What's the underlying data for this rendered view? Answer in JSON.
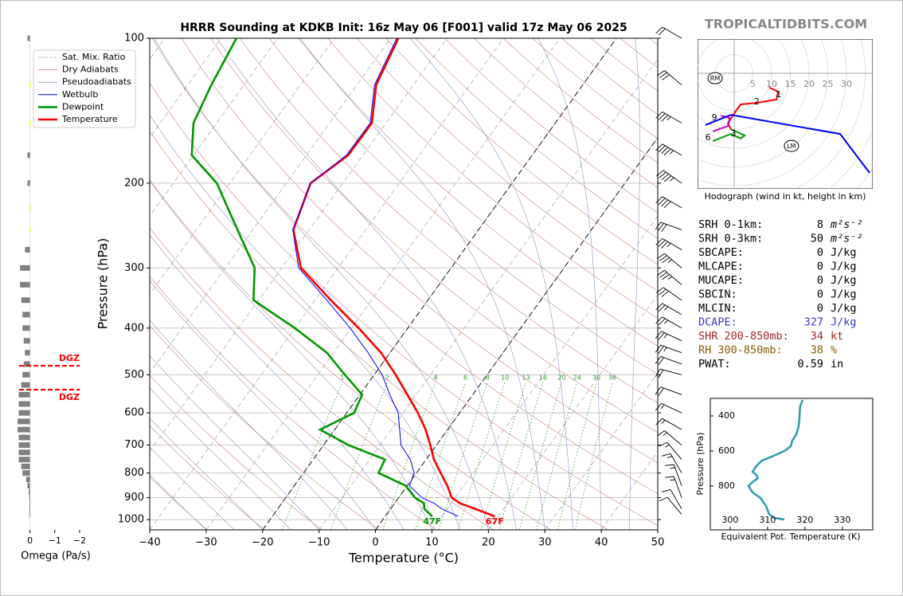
{
  "watermark": "TROPICALTIDBITS.COM",
  "chart_data": [
    {
      "type": "skewt",
      "title": "HRRR Sounding at KDKB Init: 16z May 06 [F001] valid 17z May 06 2025",
      "xlabel": "Temperature (°C)",
      "ylabel": "Pressure (hPa)",
      "xlim": [
        -40,
        50
      ],
      "xticks": [
        {
          "value": -40,
          "label": "−40"
        },
        {
          "value": -30,
          "label": "−30"
        },
        {
          "value": -20,
          "label": "−20"
        },
        {
          "value": -10,
          "label": "−10"
        },
        0,
        10,
        20,
        30,
        40,
        50
      ],
      "ylim": [
        1050,
        100
      ],
      "yscale": "log",
      "yticks": [
        100,
        200,
        300,
        400,
        500,
        600,
        700,
        800,
        900,
        1000
      ],
      "grid": true,
      "legend": "upper left",
      "pressure": [
        984,
        950,
        925,
        900,
        850,
        800,
        750,
        700,
        650,
        600,
        550,
        500,
        450,
        400,
        350,
        300,
        250,
        200,
        175,
        150,
        125,
        100
      ],
      "series": [
        {
          "name": "Temperature",
          "color": "#ff0000",
          "surface_label": "67F",
          "values": [
            19.4,
            15,
            11.6,
            9.4,
            7.1,
            4.3,
            1.4,
            -1.1,
            -3.9,
            -7.4,
            -11.6,
            -16.2,
            -21.6,
            -28.7,
            -37.2,
            -46.6,
            -52.8,
            -55.7,
            -52.6,
            -52.5,
            -56.6,
            -58.6
          ]
        },
        {
          "name": "Dewpoint",
          "color": "#009900",
          "surface_label": "47F",
          "values": [
            8.3,
            6.0,
            5.2,
            2.9,
            -0.3,
            -6.7,
            -7.3,
            -15.6,
            -22.6,
            -18.7,
            -19.6,
            -25.2,
            -31.2,
            -40,
            -50.9,
            -54.8,
            -62.7,
            -72.3,
            -80.3,
            -84.1,
            -85.8,
            -87.3
          ]
        },
        {
          "name": "Wetbulb",
          "color": "#0000ff",
          "values": [
            12.9,
            9.1,
            7.0,
            4.1,
            0.4,
            -0.4,
            -2.8,
            -6.3,
            -8.5,
            -10.9,
            -14.7,
            -18.6,
            -23.9,
            -30.2,
            -37.9,
            -47.0,
            -52.9,
            -55.7,
            -52.9,
            -52.8,
            -56.9,
            -58.9
          ]
        }
      ],
      "reference_lines": [
        {
          "name": "Sat. Mix. Ratio",
          "color": "#2e9a2e"
        },
        {
          "name": "Dry Adiabats",
          "color": "#d08080"
        },
        {
          "name": "Pseudoadiabats",
          "color": "#9090c8"
        }
      ],
      "highlight_isotherms": [
        -20,
        0
      ],
      "mixing_ratios": [
        1,
        2,
        4,
        6,
        8,
        10,
        13,
        16,
        20,
        24,
        30,
        36
      ],
      "winds": {
        "pressure": [
          100,
          125,
          150,
          175,
          200,
          225,
          250,
          275,
          300,
          325,
          350,
          375,
          400,
          425,
          450,
          475,
          500,
          550,
          600,
          650,
          700,
          750,
          800,
          850,
          900,
          950,
          975
        ],
        "speed": [
          20,
          30,
          35,
          45,
          45,
          40,
          30,
          35,
          35,
          35,
          30,
          25,
          25,
          25,
          25,
          20,
          20,
          20,
          15,
          15,
          15,
          15,
          15,
          15,
          15,
          10,
          10
        ],
        "direction": [
          300,
          310,
          300,
          300,
          305,
          300,
          290,
          300,
          310,
          310,
          305,
          300,
          300,
          295,
          290,
          290,
          285,
          290,
          295,
          300,
          310,
          320,
          330,
          340,
          340,
          330,
          320
        ]
      }
    },
    {
      "type": "omega",
      "xlabel": "Omega (Pa/s)",
      "xlim": [
        0.5,
        -2
      ],
      "xticks": [
        0,
        {
          "value": -1,
          "label": "−1"
        },
        {
          "value": -2,
          "label": "−2"
        }
      ],
      "ylim": [
        1050,
        100
      ],
      "pressure": [
        100,
        125,
        150,
        175,
        200,
        225,
        250,
        275,
        300,
        325,
        350,
        375,
        400,
        425,
        450,
        475,
        500,
        525,
        550,
        575,
        600,
        625,
        650,
        675,
        700,
        725,
        750,
        775,
        800,
        825,
        850,
        875,
        900,
        925,
        950,
        975
      ],
      "values": [
        0.1,
        -0.03,
        -0.03,
        0.1,
        0.1,
        -0.03,
        -0.03,
        0.2,
        0.4,
        0.4,
        0.35,
        0.3,
        0.3,
        0.25,
        0.2,
        0.25,
        0.3,
        0.35,
        0.45,
        0.45,
        0.45,
        0.5,
        0.5,
        0.45,
        0.45,
        0.45,
        0.45,
        0.35,
        0.3,
        0.15,
        0.1,
        0.05,
        0.03,
        0.02,
        0.02,
        0.02
      ],
      "positive_color": "#808080",
      "negative_color": "#f0f000",
      "dgz": [
        {
          "pressure": 479,
          "label": "DGZ"
        },
        {
          "pressure": 537,
          "label": "DGZ"
        }
      ],
      "dgz_color": "#ff0000"
    },
    {
      "type": "hodograph",
      "caption": "Hodograph (wind in kt, height in km)",
      "rings": [
        5,
        10,
        15,
        20,
        25,
        30
      ],
      "segments": [
        {
          "color": "#ff0000",
          "u": [
            9.4,
            11.7,
            11.3,
            6.0,
            1.7,
            -0.4,
            -1.7,
            -0.9
          ],
          "v": [
            -3.8,
            -4.9,
            -7.0,
            -7.9,
            -8.3,
            -11.3,
            -13.4,
            -14.9
          ]
        },
        {
          "color": "#00a000",
          "u": [
            -0.9,
            2.8,
            1.7,
            -0.9,
            -5.7
          ],
          "v": [
            -14.9,
            -16.6,
            -17.4,
            -16.2,
            -18.1
          ]
        },
        {
          "color": "#cc00cc",
          "u": [
            -5.7,
            -1.5,
            -1.3,
            -3.6
          ],
          "v": [
            -15.5,
            -14.0,
            -11.9,
            -11.3
          ]
        },
        {
          "color": "#0000ff",
          "u": [
            -7.7,
            -0.9,
            28.3,
            36.2
          ],
          "v": [
            -13.8,
            -11.1,
            -16.2,
            -26.6
          ]
        }
      ],
      "height_labels": [
        {
          "text": "1",
          "u": 11.9,
          "v": -5.7
        },
        {
          "text": "2",
          "u": 6.0,
          "v": -7.7
        },
        {
          "text": "3",
          "u": -0.2,
          "v": -16.2
        },
        {
          "text": "6",
          "u": -7.0,
          "v": -17.2
        },
        {
          "text": "9",
          "u": -5.3,
          "v": -11.9
        }
      ],
      "storm_motion": [
        {
          "label": "RM",
          "u": -5.1,
          "v": -1.3
        },
        {
          "label": "LM",
          "u": 15.3,
          "v": -19.4
        }
      ]
    },
    {
      "type": "line",
      "xlabel": "Equivalent Pot. Temperature (K)",
      "ylabel": "Pressure (hPa)",
      "xlim": [
        294.7,
        338.1
      ],
      "xticks": [
        300,
        310,
        320,
        330
      ],
      "ylim": [
        1050,
        300
      ],
      "yticks": [
        400,
        600,
        800
      ],
      "color": "#2e9bb0",
      "x": [
        319.4,
        318.7,
        318.5,
        318.3,
        317.7,
        316.6,
        316.2,
        314.5,
        311.7,
        308.5,
        307.0,
        306.0,
        307.0,
        307.4,
        306.0,
        304.9,
        306.0,
        308.1,
        309.6,
        310.4,
        311.7,
        314.5
      ],
      "values": [
        309,
        345,
        414,
        459,
        505,
        541,
        573,
        600,
        627,
        655,
        686,
        718,
        736,
        755,
        777,
        800,
        836,
        868,
        914,
        959,
        982,
        991
      ]
    }
  ],
  "indices": {
    "rows": [
      {
        "label": "SRH 0-1km:",
        "value": 8,
        "unit": "m²s⁻²",
        "color": "#000000"
      },
      {
        "label": "SRH 0-3km:",
        "value": 50,
        "unit": "m²s⁻²",
        "color": "#000000"
      },
      {
        "label": "SBCAPE:",
        "value": 0,
        "unit": "J/kg",
        "color": "#000000"
      },
      {
        "label": "MLCAPE:",
        "value": 0,
        "unit": "J/kg",
        "color": "#000000"
      },
      {
        "label": "MUCAPE:",
        "value": 0,
        "unit": "J/kg",
        "color": "#000000"
      },
      {
        "label": "SBCIN:",
        "value": 0,
        "unit": "J/kg",
        "color": "#000000"
      },
      {
        "label": "MLCIN:",
        "value": 0,
        "unit": "J/kg",
        "color": "#000000"
      },
      {
        "label": "DCAPE:",
        "value": 327,
        "unit": "J/kg",
        "color": "#3a3ad0"
      },
      {
        "label": "SHR 200-850mb:",
        "value": 34,
        "unit": "kt",
        "color": "#a02828"
      },
      {
        "label": "RH 300-850mb:",
        "value": 38,
        "unit": "%",
        "color": "#8a5a00"
      },
      {
        "label": "PWAT:",
        "value": 0.59,
        "unit": "in",
        "color": "#000000"
      }
    ]
  }
}
